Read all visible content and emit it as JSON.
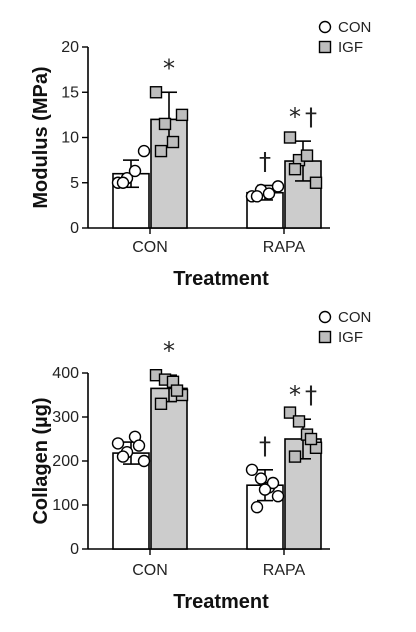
{
  "chart_data": [
    {
      "type": "bar",
      "title": "",
      "xlabel": "Treatment",
      "ylabel": "Modulus (MPa)",
      "categories": [
        "CON",
        "RAPA"
      ],
      "ylim": [
        0,
        20
      ],
      "yticks": [
        0,
        5,
        10,
        15,
        20
      ],
      "grid": false,
      "legend": "top-right",
      "series": [
        {
          "name": "CON",
          "color": "#ffffff",
          "marker": "circle",
          "values": [
            6.0,
            3.9
          ],
          "sd": [
            1.5,
            0.8
          ],
          "points": [
            [
              5.0,
              5.5,
              6.3,
              8.5,
              5.0
            ],
            [
              3.5,
              4.2,
              3.8,
              4.6,
              3.5
            ]
          ]
        },
        {
          "name": "IGF",
          "color": "#cccccc",
          "marker": "square",
          "values": [
            12.0,
            7.4
          ],
          "sd": [
            3.0,
            2.2
          ],
          "points": [
            [
              15.0,
              11.5,
              9.5,
              12.5,
              8.5
            ],
            [
              10.0,
              7.5,
              8.0,
              5.0,
              6.5
            ]
          ]
        }
      ],
      "annotations": [
        {
          "text": "*",
          "category": "CON",
          "series": "IGF"
        },
        {
          "text": "†",
          "category": "RAPA",
          "series": "CON"
        },
        {
          "text": "*",
          "category": "RAPA",
          "series": "IGF"
        },
        {
          "text": "†",
          "category": "RAPA",
          "series": "IGF"
        }
      ]
    },
    {
      "type": "bar",
      "title": "",
      "xlabel": "Treatment",
      "ylabel": "Collagen (µg)",
      "categories": [
        "CON",
        "RAPA"
      ],
      "ylim": [
        0,
        400
      ],
      "yticks": [
        0,
        100,
        200,
        300,
        400
      ],
      "grid": false,
      "legend": "top-right",
      "series": [
        {
          "name": "CON",
          "color": "#ffffff",
          "marker": "circle",
          "values": [
            218,
            145
          ],
          "sd": [
            25,
            35
          ],
          "points": [
            [
              240,
              220,
              255,
              200,
              210,
              235
            ],
            [
              180,
              160,
              140,
              120,
              95,
              150,
              135
            ]
          ]
        },
        {
          "name": "IGF",
          "color": "#cccccc",
          "marker": "square",
          "values": [
            365,
            250
          ],
          "sd": [
            30,
            45
          ],
          "points": [
            [
              395,
              385,
              380,
              350,
              330,
              360
            ],
            [
              310,
              290,
              260,
              230,
              210,
              250
            ]
          ]
        }
      ],
      "annotations": [
        {
          "text": "*",
          "category": "CON",
          "series": "IGF"
        },
        {
          "text": "†",
          "category": "RAPA",
          "series": "CON"
        },
        {
          "text": "*",
          "category": "RAPA",
          "series": "IGF"
        },
        {
          "text": "†",
          "category": "RAPA",
          "series": "IGF"
        }
      ]
    }
  ]
}
